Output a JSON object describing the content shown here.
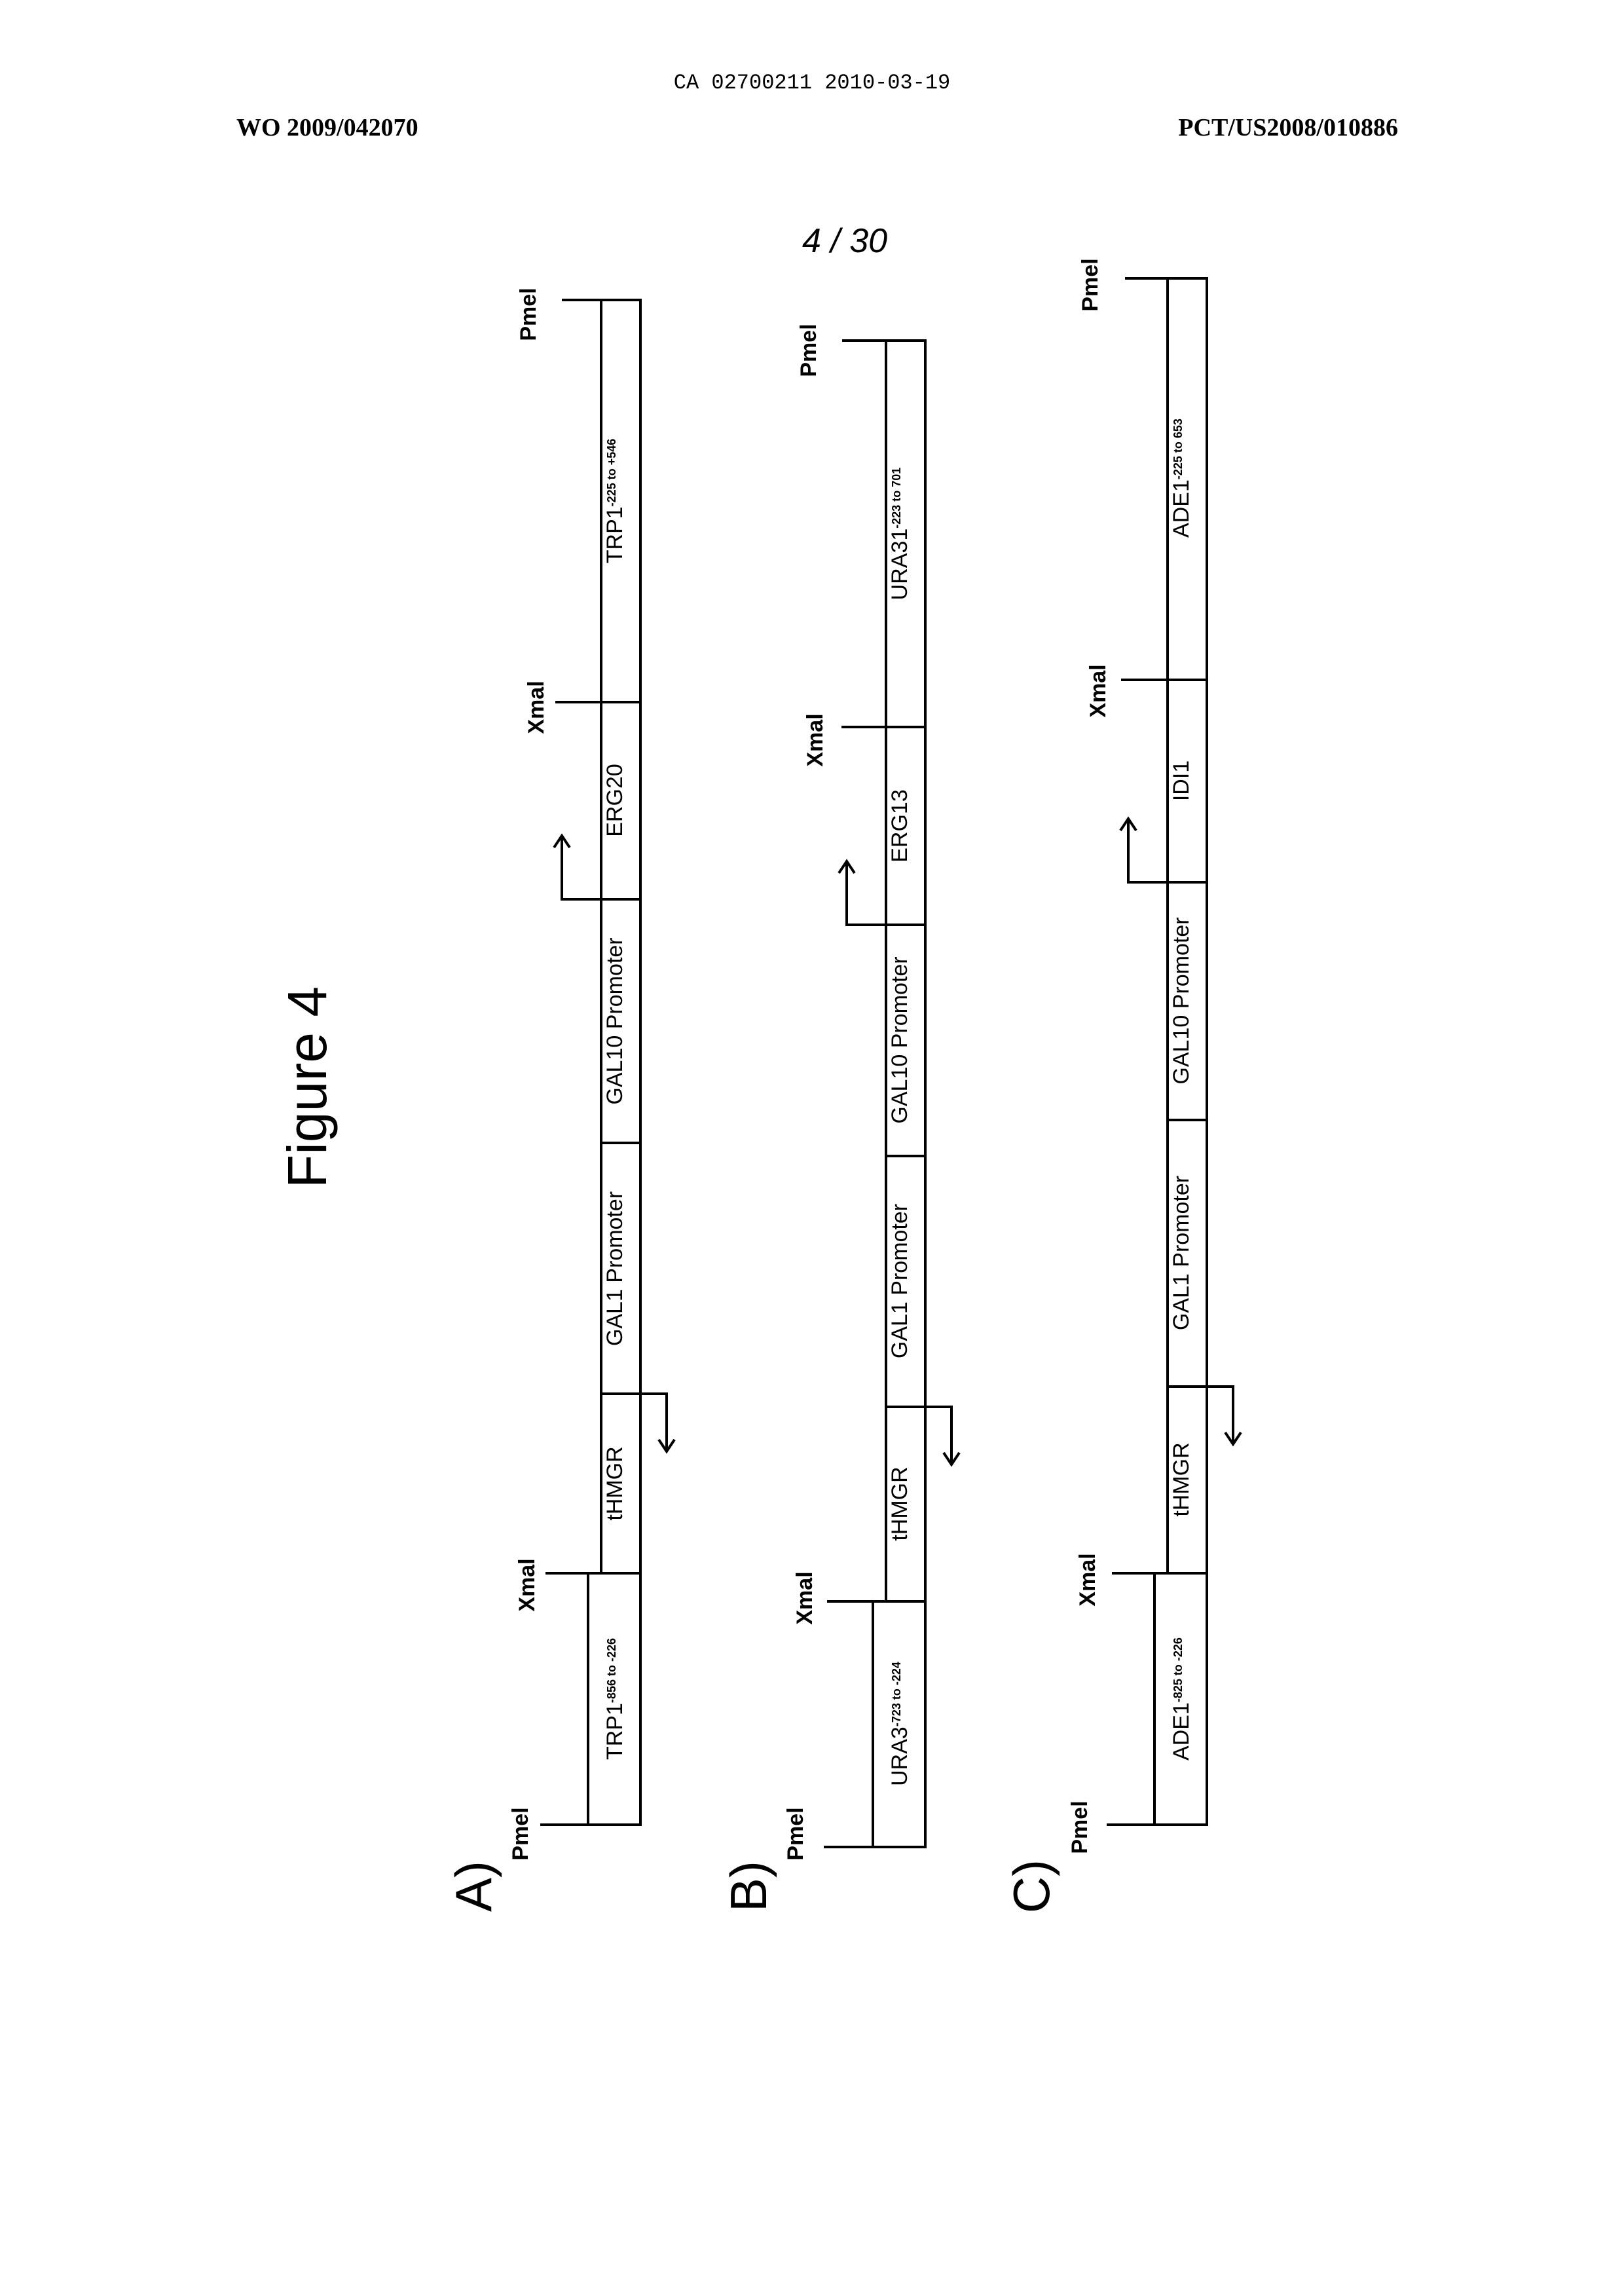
{
  "header": {
    "ca_number": "CA 02700211 2010-03-19",
    "wo_number": "WO 2009/042070",
    "pct_number": "PCT/US2008/010886"
  },
  "page_number": "4 / 30",
  "figure_title": "Figure 4",
  "constructs": [
    {
      "label": "A)",
      "left_site": "Pmel",
      "xmal_left": "Xmal",
      "xmal_right": "Xmal",
      "right_site": "Pmel",
      "segments": [
        {
          "name": "TRP1",
          "sup": "-856 to -226"
        },
        {
          "name": "tHMGR",
          "sup": ""
        },
        {
          "name": "GAL1 Promoter",
          "sup": ""
        },
        {
          "name": "GAL10 Promoter",
          "sup": ""
        },
        {
          "name": "ERG20",
          "sup": ""
        },
        {
          "name": "TRP1",
          "sup": "-225 to +546"
        }
      ]
    },
    {
      "label": "B)",
      "left_site": "Pmel",
      "xmal_left": "Xmal",
      "xmal_right": "Xmal",
      "right_site": "Pmel",
      "segments": [
        {
          "name": "URA3",
          "sup": "-723 to -224"
        },
        {
          "name": "tHMGR",
          "sup": ""
        },
        {
          "name": "GAL1 Promoter",
          "sup": ""
        },
        {
          "name": "GAL10 Promoter",
          "sup": ""
        },
        {
          "name": "ERG13",
          "sup": ""
        },
        {
          "name": "URA31",
          "sup": "-223 to 701"
        }
      ]
    },
    {
      "label": "C)",
      "left_site": "Pmel",
      "xmal_left": "Xmal",
      "xmal_right": "Xmal",
      "right_site": "Pmel",
      "segments": [
        {
          "name": "ADE1",
          "sup": "-825 to -226"
        },
        {
          "name": "tHMGR",
          "sup": ""
        },
        {
          "name": "GAL1 Promoter",
          "sup": ""
        },
        {
          "name": "GAL10 Promoter",
          "sup": ""
        },
        {
          "name": "IDI1",
          "sup": ""
        },
        {
          "name": "ADE1",
          "sup": "-225 to 653"
        }
      ]
    }
  ]
}
